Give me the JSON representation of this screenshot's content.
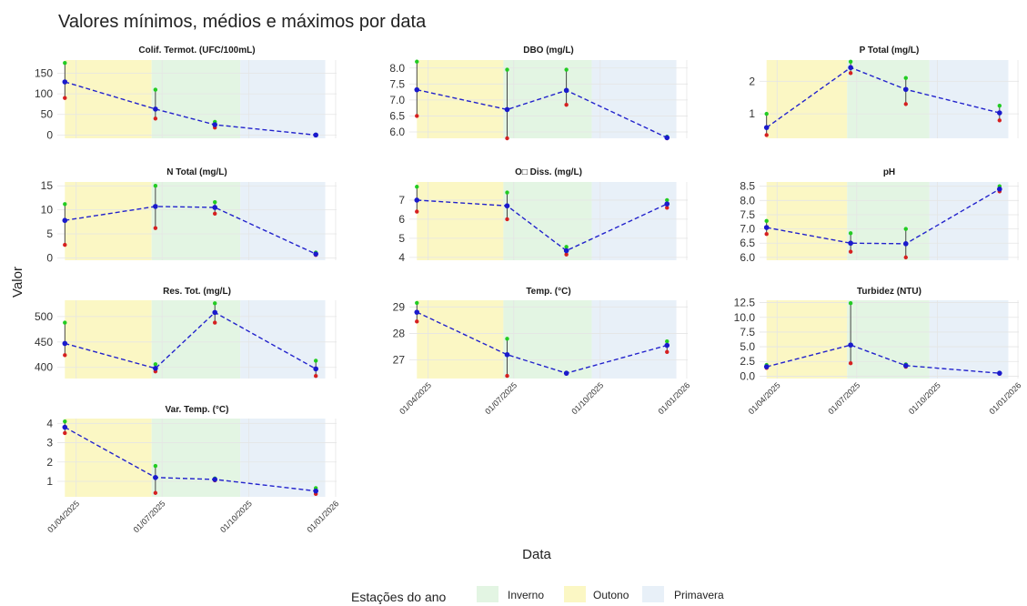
{
  "title": "Valores mínimos, médios e máximos por data",
  "xlabel": "Data",
  "ylabel": "Valor",
  "legend": {
    "title": "Estações do ano",
    "items": [
      {
        "label": "Inverno",
        "color": "#e3f5e3"
      },
      {
        "label": "Outono",
        "color": "#fbf7c4"
      },
      {
        "label": "Primavera",
        "color": "#e8f0f8"
      }
    ]
  },
  "colors": {
    "mean": "#1a1acc",
    "line": "#2222cc",
    "min": "#d62020",
    "max": "#22cc22",
    "errorbar": "#333333",
    "grid": "#e5e5e5"
  },
  "chart_data": {
    "type": "line",
    "x_dates": [
      "2025-03-20",
      "2025-06-24",
      "2025-08-26",
      "2025-12-11"
    ],
    "x_ticks": [
      "01/04/2025",
      "01/07/2025",
      "01/10/2025",
      "01/01/2026"
    ],
    "x_tick_dates": [
      "2025-04-01",
      "2025-07-01",
      "2025-10-01",
      "2026-01-01"
    ],
    "x_range": [
      "2025-03-12",
      "2026-01-02"
    ],
    "seasons": [
      {
        "name": "Outono",
        "start": "2025-03-20",
        "end": "2025-06-20"
      },
      {
        "name": "Inverno",
        "start": "2025-06-20",
        "end": "2025-09-22"
      },
      {
        "name": "Primavera",
        "start": "2025-09-22",
        "end": "2025-12-21"
      }
    ],
    "panels": [
      {
        "title": "Colif. Termot. (UFC/100mL)",
        "ylim": [
          -8,
          182
        ],
        "yticks": [
          0,
          50,
          100,
          150
        ],
        "mean": [
          129,
          63,
          25,
          0
        ],
        "min": [
          90,
          40,
          18,
          0
        ],
        "max": [
          175,
          110,
          32,
          1
        ]
      },
      {
        "title": "DBO (mg/L)",
        "ylim": [
          5.8,
          8.25
        ],
        "yticks": [
          6.0,
          6.5,
          7.0,
          7.5,
          8.0
        ],
        "mean": [
          7.32,
          6.7,
          7.3,
          5.82
        ],
        "min": [
          6.5,
          5.8,
          6.85,
          5.8
        ],
        "max": [
          8.2,
          7.95,
          7.95,
          5.85
        ]
      },
      {
        "title": "P Total (mg/L)",
        "ylim": [
          0.25,
          2.65
        ],
        "yticks": [
          1,
          2
        ],
        "mean": [
          0.58,
          2.42,
          1.75,
          1.03
        ],
        "min": [
          0.35,
          2.25,
          1.3,
          0.8
        ],
        "max": [
          1.0,
          2.6,
          2.1,
          1.25
        ]
      },
      {
        "title": "N Total (mg/L)",
        "ylim": [
          -0.5,
          15.8
        ],
        "yticks": [
          0,
          5,
          10,
          15
        ],
        "mean": [
          7.8,
          10.7,
          10.5,
          0.8
        ],
        "min": [
          2.7,
          6.2,
          9.2,
          0.6
        ],
        "max": [
          11.2,
          15.0,
          11.6,
          1.1
        ]
      },
      {
        "title": "O□ Diss. (mg/L)",
        "ylim": [
          3.85,
          7.95
        ],
        "yticks": [
          4,
          5,
          6,
          7
        ],
        "mean": [
          7.0,
          6.7,
          4.35,
          6.8
        ],
        "min": [
          6.4,
          6.0,
          4.15,
          6.6
        ],
        "max": [
          7.7,
          7.4,
          4.55,
          7.0
        ]
      },
      {
        "title": "pH",
        "ylim": [
          5.9,
          8.65
        ],
        "yticks": [
          6.0,
          6.5,
          7.0,
          7.5,
          8.0,
          8.5
        ],
        "mean": [
          7.05,
          6.5,
          6.48,
          8.4
        ],
        "min": [
          6.82,
          6.2,
          6.0,
          8.32
        ],
        "max": [
          7.28,
          6.85,
          7.0,
          8.5
        ]
      },
      {
        "title": "Res. Tot. (mg/L)",
        "ylim": [
          378,
          532
        ],
        "yticks": [
          400,
          450,
          500
        ],
        "mean": [
          447,
          398,
          508,
          397
        ],
        "min": [
          424,
          392,
          488,
          383
        ],
        "max": [
          488,
          406,
          526,
          413
        ]
      },
      {
        "title": "Temp. (°C)",
        "ylim": [
          26.3,
          29.25
        ],
        "yticks": [
          27,
          28,
          29
        ],
        "mean": [
          28.8,
          27.2,
          26.5,
          27.55
        ],
        "min": [
          28.45,
          26.4,
          26.48,
          27.3
        ],
        "max": [
          29.15,
          27.8,
          26.52,
          27.7
        ]
      },
      {
        "title": "Turbidez (NTU)",
        "ylim": [
          -0.4,
          12.9
        ],
        "yticks": [
          0.0,
          2.5,
          5.0,
          7.5,
          10.0,
          12.5
        ],
        "ytick_labels": [
          "0.0",
          "2.5",
          "5.0",
          "7.5",
          "10.0",
          "12.5"
        ],
        "mean": [
          1.6,
          5.3,
          1.8,
          0.5
        ],
        "min": [
          1.4,
          2.2,
          1.6,
          0.4
        ],
        "max": [
          1.9,
          12.4,
          2.0,
          0.6
        ]
      },
      {
        "title": "Var. Temp. (°C)",
        "ylim": [
          0.2,
          4.25
        ],
        "yticks": [
          1,
          2,
          3,
          4
        ],
        "mean": [
          3.8,
          1.2,
          1.1,
          0.5
        ],
        "min": [
          3.5,
          0.4,
          1.05,
          0.35
        ],
        "max": [
          4.1,
          1.8,
          1.15,
          0.65
        ]
      }
    ]
  }
}
